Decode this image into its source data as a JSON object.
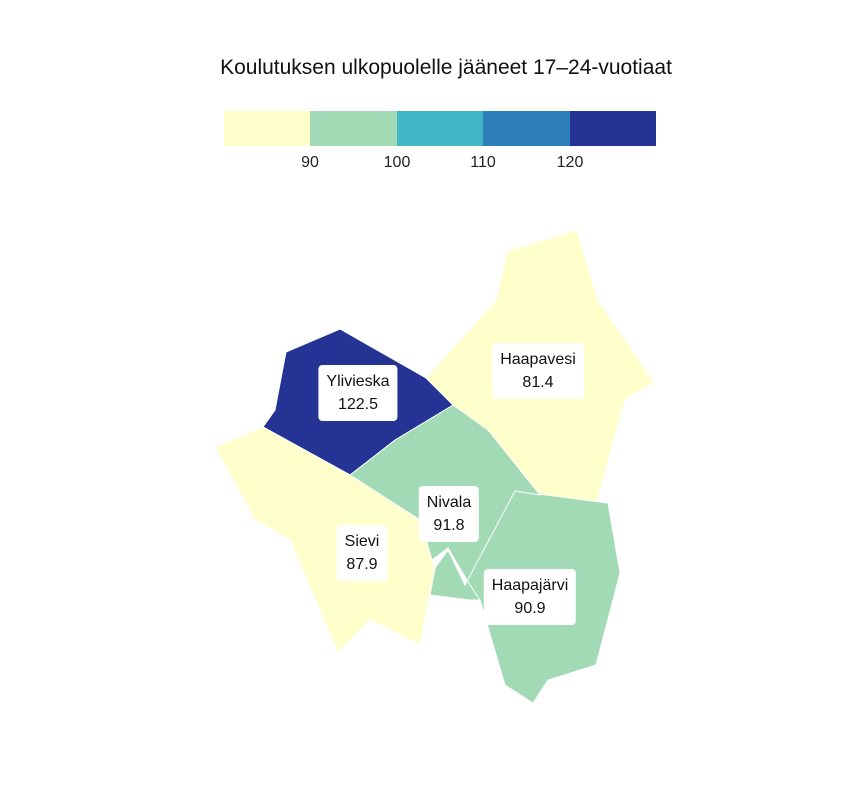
{
  "title": "Koulutuksen ulkopuolelle jääneet 17–24-vuotiaat",
  "legend": {
    "colors": [
      "#ffffcc",
      "#a1dab4",
      "#41b6c4",
      "#2c7fb8",
      "#253494"
    ],
    "breaks": [
      "90",
      "100",
      "110",
      "120"
    ]
  },
  "regions": [
    {
      "name": "Haapavesi",
      "value": "81.4",
      "color": "#ffffcc"
    },
    {
      "name": "Ylivieska",
      "value": "122.5",
      "color": "#253494"
    },
    {
      "name": "Nivala",
      "value": "91.8",
      "color": "#a1dab4"
    },
    {
      "name": "Sievi",
      "value": "87.9",
      "color": "#ffffcc"
    },
    {
      "name": "Haapajärvi",
      "value": "90.9",
      "color": "#a1dab4"
    }
  ]
}
